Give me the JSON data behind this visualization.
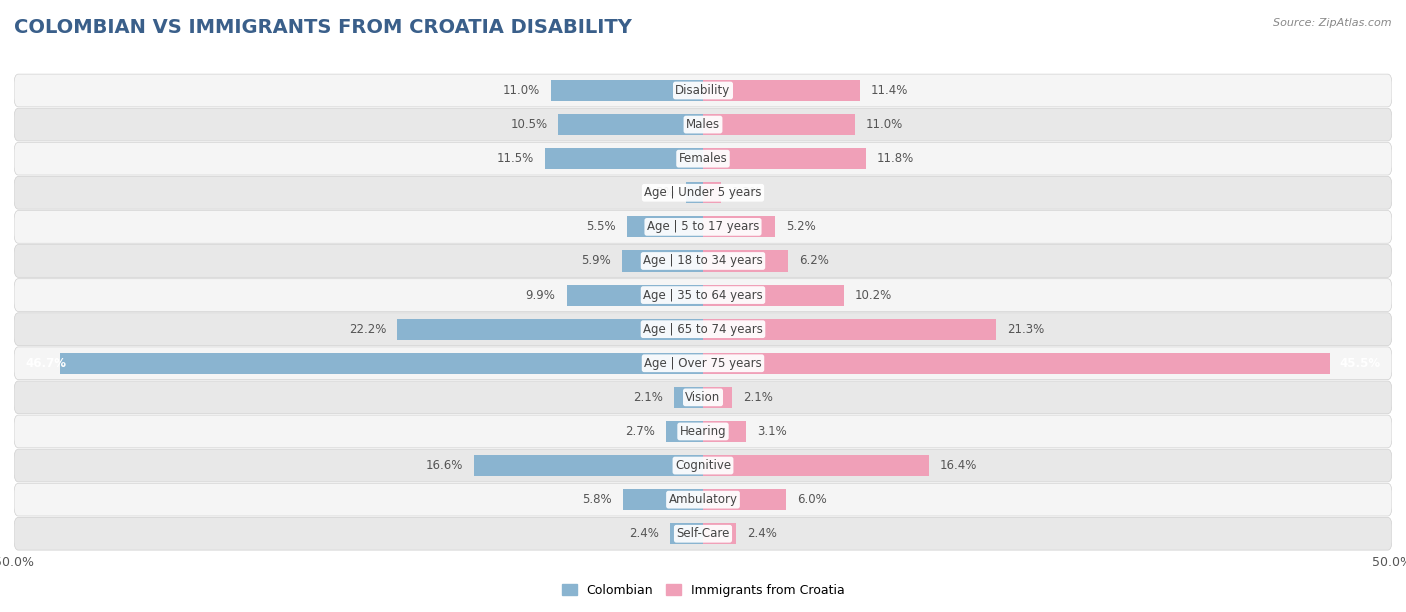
{
  "title": "COLOMBIAN VS IMMIGRANTS FROM CROATIA DISABILITY",
  "source": "Source: ZipAtlas.com",
  "categories": [
    "Disability",
    "Males",
    "Females",
    "Age | Under 5 years",
    "Age | 5 to 17 years",
    "Age | 18 to 34 years",
    "Age | 35 to 64 years",
    "Age | 65 to 74 years",
    "Age | Over 75 years",
    "Vision",
    "Hearing",
    "Cognitive",
    "Ambulatory",
    "Self-Care"
  ],
  "colombian": [
    11.0,
    10.5,
    11.5,
    1.2,
    5.5,
    5.9,
    9.9,
    22.2,
    46.7,
    2.1,
    2.7,
    16.6,
    5.8,
    2.4
  ],
  "croatia": [
    11.4,
    11.0,
    11.8,
    1.3,
    5.2,
    6.2,
    10.2,
    21.3,
    45.5,
    2.1,
    3.1,
    16.4,
    6.0,
    2.4
  ],
  "colombian_color": "#8ab4d0",
  "croatia_color": "#f0a0b8",
  "axis_max": 50.0,
  "bg_color": "#ffffff",
  "row_bg_even": "#f5f5f5",
  "row_bg_odd": "#e8e8e8",
  "row_border": "#d0d0d0",
  "label_fontsize": 8.5,
  "title_fontsize": 14,
  "source_fontsize": 8,
  "legend_labels": [
    "Colombian",
    "Immigrants from Croatia"
  ],
  "bar_height": 0.62,
  "label_color": "#555555",
  "center_label_color": "#555555",
  "large_bar_label_color": "#ffffff"
}
